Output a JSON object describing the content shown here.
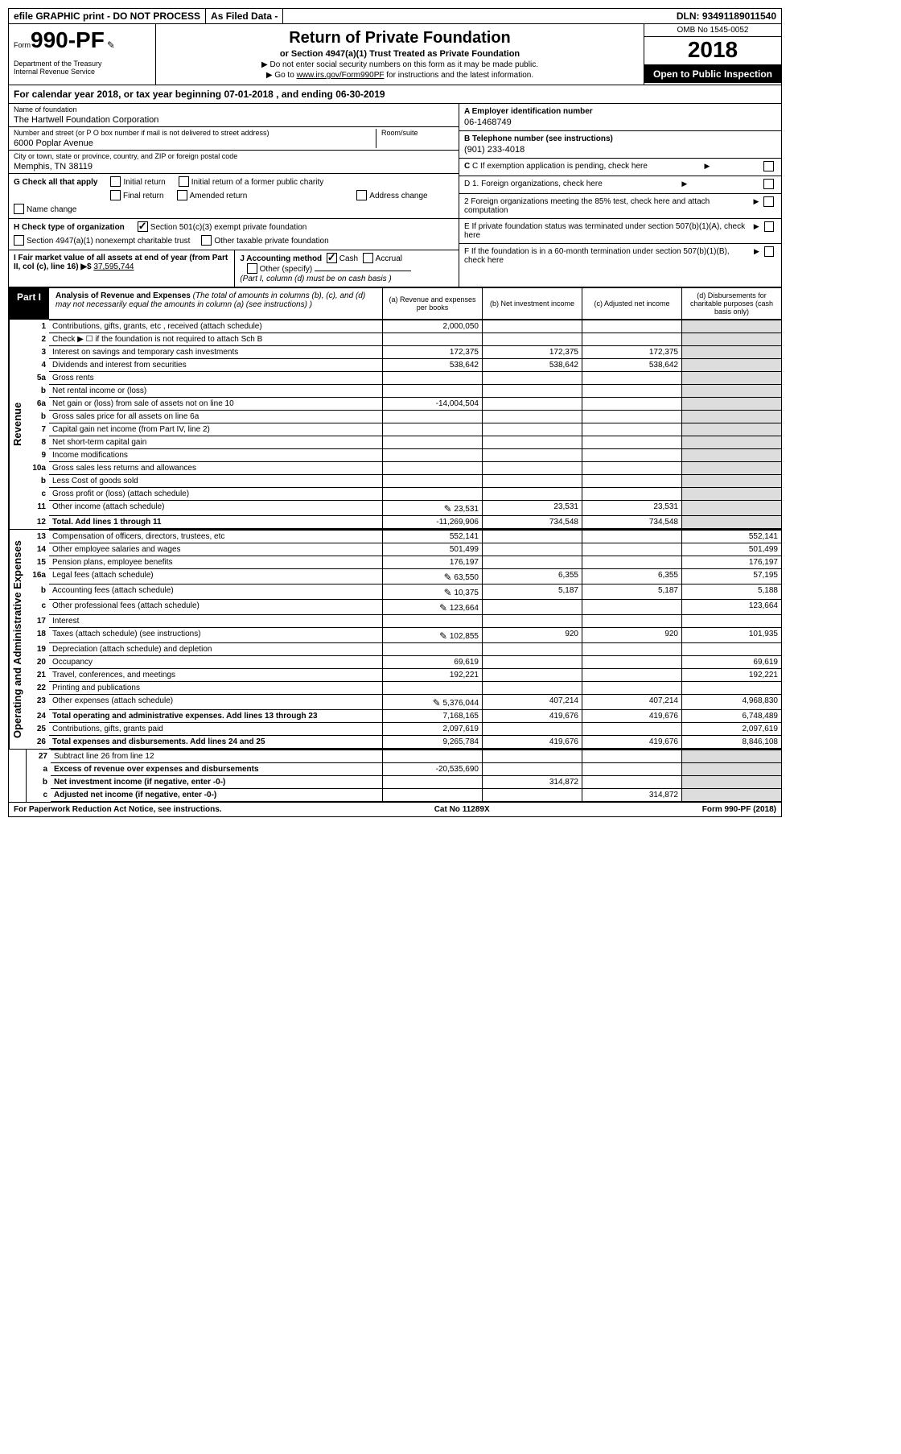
{
  "topbar": {
    "efile": "efile GRAPHIC print - DO NOT PROCESS",
    "asfiled": "As Filed Data -",
    "dln_label": "DLN:",
    "dln": "93491189011540"
  },
  "header": {
    "form_word": "Form",
    "form_no": "990-PF",
    "dept1": "Department of the Treasury",
    "dept2": "Internal Revenue Service",
    "title": "Return of Private Foundation",
    "subtitle": "or Section 4947(a)(1) Trust Treated as Private Foundation",
    "note1": "▶ Do not enter social security numbers on this form as it may be made public.",
    "note2_pre": "▶ Go to ",
    "note2_link": "www.irs.gov/Form990PF",
    "note2_post": " for instructions and the latest information.",
    "omb": "OMB No 1545-0052",
    "year": "2018",
    "open": "Open to Public Inspection"
  },
  "calyear": {
    "text_a": "For calendar year 2018, or tax year beginning ",
    "begin": "07-01-2018",
    "text_b": " , and ending ",
    "end": "06-30-2019"
  },
  "ident": {
    "name_lbl": "Name of foundation",
    "name": "The Hartwell Foundation Corporation",
    "addr_lbl": "Number and street (or P O  box number if mail is not delivered to street address)",
    "suite_lbl": "Room/suite",
    "addr": "6000 Poplar Avenue",
    "city_lbl": "City or town, state or province, country, and ZIP or foreign postal code",
    "city": "Memphis, TN  38119",
    "A_lbl": "A Employer identification number",
    "A_val": "06-1468749",
    "B_lbl": "B Telephone number (see instructions)",
    "B_val": "(901) 233-4018",
    "C_lbl": "C If exemption application is pending, check here",
    "D1_lbl": "D 1. Foreign organizations, check here",
    "D2_lbl": "2 Foreign organizations meeting the 85% test, check here and attach computation",
    "E_lbl": "E If private foundation status was terminated under section 507(b)(1)(A), check here",
    "F_lbl": "F If the foundation is in a 60-month termination under section 507(b)(1)(B), check here"
  },
  "checks": {
    "G_lbl": "G Check all that apply",
    "g1": "Initial return",
    "g2": "Initial return of a former public charity",
    "g3": "Final return",
    "g4": "Amended return",
    "g5": "Address change",
    "g6": "Name change",
    "H_lbl": "H Check type of organization",
    "h1": "Section 501(c)(3) exempt private foundation",
    "h2": "Section 4947(a)(1) nonexempt charitable trust",
    "h3": "Other taxable private foundation",
    "I_lbl": "I Fair market value of all assets at end of year (from Part II, col  (c), line 16) ▶$ ",
    "I_val": "37,595,744",
    "J_lbl": "J Accounting method",
    "j1": "Cash",
    "j2": "Accrual",
    "j3": "Other (specify)",
    "j_note": "(Part I, column (d) must be on cash basis )"
  },
  "part1": {
    "label": "Part I",
    "title_b": "Analysis of Revenue and Expenses",
    "title_i": " (The total of amounts in columns (b), (c), and (d) may not necessarily equal the amounts in column (a) (see instructions) )",
    "col_a": "(a)   Revenue and expenses per books",
    "col_b": "(b)   Net investment income",
    "col_c": "(c)   Adjusted net income",
    "col_d": "(d)   Disbursements for charitable purposes (cash basis only)"
  },
  "side_rev": "Revenue",
  "side_exp": "Operating and Administrative Expenses",
  "rows": {
    "r1": {
      "n": "1",
      "d": "Contributions, gifts, grants, etc , received (attach schedule)",
      "a": "2,000,050"
    },
    "r2": {
      "n": "2",
      "d": "Check ▶ ☐ if the foundation is not required to attach Sch  B"
    },
    "r3": {
      "n": "3",
      "d": "Interest on savings and temporary cash investments",
      "a": "172,375",
      "b": "172,375",
      "c": "172,375"
    },
    "r4": {
      "n": "4",
      "d": "Dividends and interest from securities",
      "a": "538,642",
      "b": "538,642",
      "c": "538,642"
    },
    "r5a": {
      "n": "5a",
      "d": "Gross rents"
    },
    "r5b": {
      "n": "b",
      "d": "Net rental income or (loss)"
    },
    "r6a": {
      "n": "6a",
      "d": "Net gain or (loss) from sale of assets not on line 10",
      "a": "-14,004,504"
    },
    "r6b": {
      "n": "b",
      "d": "Gross sales price for all assets on line 6a"
    },
    "r7": {
      "n": "7",
      "d": "Capital gain net income (from Part IV, line 2)"
    },
    "r8": {
      "n": "8",
      "d": "Net short-term capital gain"
    },
    "r9": {
      "n": "9",
      "d": "Income modifications"
    },
    "r10a": {
      "n": "10a",
      "d": "Gross sales less returns and allowances"
    },
    "r10b": {
      "n": "b",
      "d": "Less  Cost of goods sold"
    },
    "r10c": {
      "n": "c",
      "d": "Gross profit or (loss) (attach schedule)"
    },
    "r11": {
      "n": "11",
      "d": "Other income (attach schedule)",
      "a": "23,531",
      "b": "23,531",
      "c": "23,531",
      "pen": true
    },
    "r12": {
      "n": "12",
      "d": "Total. Add lines 1 through 11",
      "a": "-11,269,906",
      "b": "734,548",
      "c": "734,548",
      "bold": true
    },
    "r13": {
      "n": "13",
      "d": "Compensation of officers, directors, trustees, etc",
      "a": "552,141",
      "dd": "552,141"
    },
    "r14": {
      "n": "14",
      "d": "Other employee salaries and wages",
      "a": "501,499",
      "dd": "501,499"
    },
    "r15": {
      "n": "15",
      "d": "Pension plans, employee benefits",
      "a": "176,197",
      "dd": "176,197"
    },
    "r16a": {
      "n": "16a",
      "d": "Legal fees (attach schedule)",
      "a": "63,550",
      "b": "6,355",
      "c": "6,355",
      "dd": "57,195",
      "pen": true
    },
    "r16b": {
      "n": "b",
      "d": "Accounting fees (attach schedule)",
      "a": "10,375",
      "b": "5,187",
      "c": "5,187",
      "dd": "5,188",
      "pen": true
    },
    "r16c": {
      "n": "c",
      "d": "Other professional fees (attach schedule)",
      "a": "123,664",
      "dd": "123,664",
      "pen": true
    },
    "r17": {
      "n": "17",
      "d": "Interest"
    },
    "r18": {
      "n": "18",
      "d": "Taxes (attach schedule) (see instructions)",
      "a": "102,855",
      "b": "920",
      "c": "920",
      "dd": "101,935",
      "pen": true
    },
    "r19": {
      "n": "19",
      "d": "Depreciation (attach schedule) and depletion"
    },
    "r20": {
      "n": "20",
      "d": "Occupancy",
      "a": "69,619",
      "dd": "69,619"
    },
    "r21": {
      "n": "21",
      "d": "Travel, conferences, and meetings",
      "a": "192,221",
      "dd": "192,221"
    },
    "r22": {
      "n": "22",
      "d": "Printing and publications"
    },
    "r23": {
      "n": "23",
      "d": "Other expenses (attach schedule)",
      "a": "5,376,044",
      "b": "407,214",
      "c": "407,214",
      "dd": "4,968,830",
      "pen": true
    },
    "r24": {
      "n": "24",
      "d": "Total operating and administrative expenses. Add lines 13 through 23",
      "a": "7,168,165",
      "b": "419,676",
      "c": "419,676",
      "dd": "6,748,489",
      "bold": true
    },
    "r25": {
      "n": "25",
      "d": "Contributions, gifts, grants paid",
      "a": "2,097,619",
      "dd": "2,097,619"
    },
    "r26": {
      "n": "26",
      "d": "Total expenses and disbursements. Add lines 24 and 25",
      "a": "9,265,784",
      "b": "419,676",
      "c": "419,676",
      "dd": "8,846,108",
      "bold": true
    },
    "r27": {
      "n": "27",
      "d": "Subtract line 26 from line 12"
    },
    "r27a": {
      "n": "a",
      "d": "Excess of revenue over expenses and disbursements",
      "a": "-20,535,690",
      "bold": true
    },
    "r27b": {
      "n": "b",
      "d": "Net investment income (if negative, enter -0-)",
      "b": "314,872",
      "bold": true
    },
    "r27c": {
      "n": "c",
      "d": "Adjusted net income (if negative, enter -0-)",
      "c": "314,872",
      "bold": true
    }
  },
  "footer": {
    "left": "For Paperwork Reduction Act Notice, see instructions.",
    "mid": "Cat  No  11289X",
    "right": "Form 990-PF (2018)"
  }
}
